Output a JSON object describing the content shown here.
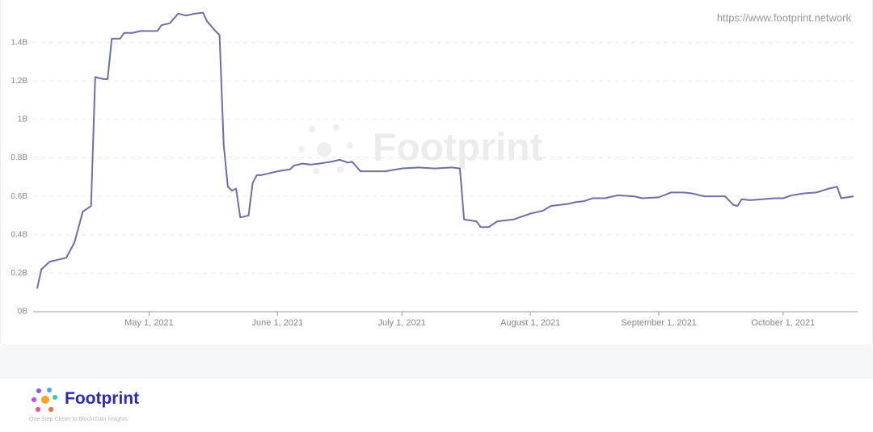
{
  "chart_data": {
    "type": "line",
    "watermark": "Footprint",
    "source": "https://www.footprint.network",
    "x": [
      "2021-04-04",
      "2021-04-05",
      "2021-04-07",
      "2021-04-09",
      "2021-04-11",
      "2021-04-13",
      "2021-04-15",
      "2021-04-17",
      "2021-04-18",
      "2021-04-20",
      "2021-04-21",
      "2021-04-22",
      "2021-04-24",
      "2021-04-25",
      "2021-04-27",
      "2021-04-29",
      "2021-05-03",
      "2021-05-04",
      "2021-05-06",
      "2021-05-08",
      "2021-05-10",
      "2021-05-12",
      "2021-05-14",
      "2021-05-15",
      "2021-05-17",
      "2021-05-18",
      "2021-05-19",
      "2021-05-20",
      "2021-05-21",
      "2021-05-22",
      "2021-05-23",
      "2021-05-25",
      "2021-05-26",
      "2021-05-27",
      "2021-05-28",
      "2021-05-30",
      "2021-06-01",
      "2021-06-04",
      "2021-06-05",
      "2021-06-07",
      "2021-06-09",
      "2021-06-11",
      "2021-06-14",
      "2021-06-16",
      "2021-06-18",
      "2021-06-19",
      "2021-06-21",
      "2021-06-23",
      "2021-06-27",
      "2021-07-01",
      "2021-07-05",
      "2021-07-09",
      "2021-07-13",
      "2021-07-15",
      "2021-07-16",
      "2021-07-19",
      "2021-07-20",
      "2021-07-22",
      "2021-07-24",
      "2021-07-26",
      "2021-07-28",
      "2021-08-01",
      "2021-08-04",
      "2021-08-06",
      "2021-08-10",
      "2021-08-12",
      "2021-08-14",
      "2021-08-16",
      "2021-08-19",
      "2021-08-22",
      "2021-08-26",
      "2021-08-28",
      "2021-09-01",
      "2021-09-04",
      "2021-09-07",
      "2021-09-09",
      "2021-09-12",
      "2021-09-15",
      "2021-09-17",
      "2021-09-19",
      "2021-09-20",
      "2021-09-21",
      "2021-09-23",
      "2021-09-26",
      "2021-09-29",
      "2021-10-01",
      "2021-10-03",
      "2021-10-06",
      "2021-10-09",
      "2021-10-12",
      "2021-10-14",
      "2021-10-15",
      "2021-10-18"
    ],
    "series": [
      {
        "color": "#6f6fa8",
        "values": [
          0.12,
          0.22,
          0.26,
          0.27,
          0.28,
          0.36,
          0.52,
          0.55,
          1.22,
          1.21,
          1.21,
          1.42,
          1.42,
          1.45,
          1.45,
          1.46,
          1.46,
          1.49,
          1.5,
          1.55,
          1.54,
          1.55,
          1.555,
          1.51,
          1.46,
          1.44,
          0.87,
          0.65,
          0.63,
          0.64,
          0.49,
          0.5,
          0.67,
          0.71,
          0.71,
          0.72,
          0.73,
          0.74,
          0.76,
          0.77,
          0.765,
          0.77,
          0.78,
          0.79,
          0.775,
          0.78,
          0.73,
          0.73,
          0.73,
          0.745,
          0.75,
          0.745,
          0.75,
          0.745,
          0.48,
          0.47,
          0.44,
          0.44,
          0.47,
          0.475,
          0.48,
          0.51,
          0.525,
          0.55,
          0.56,
          0.57,
          0.575,
          0.59,
          0.59,
          0.605,
          0.6,
          0.59,
          0.595,
          0.62,
          0.62,
          0.615,
          0.6,
          0.6,
          0.6,
          0.555,
          0.55,
          0.585,
          0.58,
          0.585,
          0.59,
          0.59,
          0.605,
          0.615,
          0.62,
          0.64,
          0.65,
          0.59,
          0.6
        ]
      }
    ],
    "xlim": [
      "2021-04-04",
      "2021-10-18"
    ],
    "xticks": [
      {
        "value": "2021-05-01",
        "label": "May 1, 2021"
      },
      {
        "value": "2021-06-01",
        "label": "June 1, 2021"
      },
      {
        "value": "2021-07-01",
        "label": "July 1, 2021"
      },
      {
        "value": "2021-08-01",
        "label": "August 1, 2021"
      },
      {
        "value": "2021-09-01",
        "label": "September 1, 2021"
      },
      {
        "value": "2021-10-01",
        "label": "October 1, 2021"
      }
    ],
    "ylim": [
      0,
      1.6
    ],
    "yticks": [
      {
        "value": 0,
        "label": "0B"
      },
      {
        "value": 0.2,
        "label": "0.2B"
      },
      {
        "value": 0.4,
        "label": "0.4B"
      },
      {
        "value": 0.6,
        "label": "0.6B"
      },
      {
        "value": 0.8,
        "label": "0.8B"
      },
      {
        "value": 1,
        "label": "1B"
      },
      {
        "value": 1.2,
        "label": "1.2B"
      },
      {
        "value": 1.4,
        "label": "1.4B"
      }
    ],
    "grid": true
  },
  "footer": {
    "brand": "Footprint",
    "tagline": "One Step Closer to Blockchain Insights"
  }
}
